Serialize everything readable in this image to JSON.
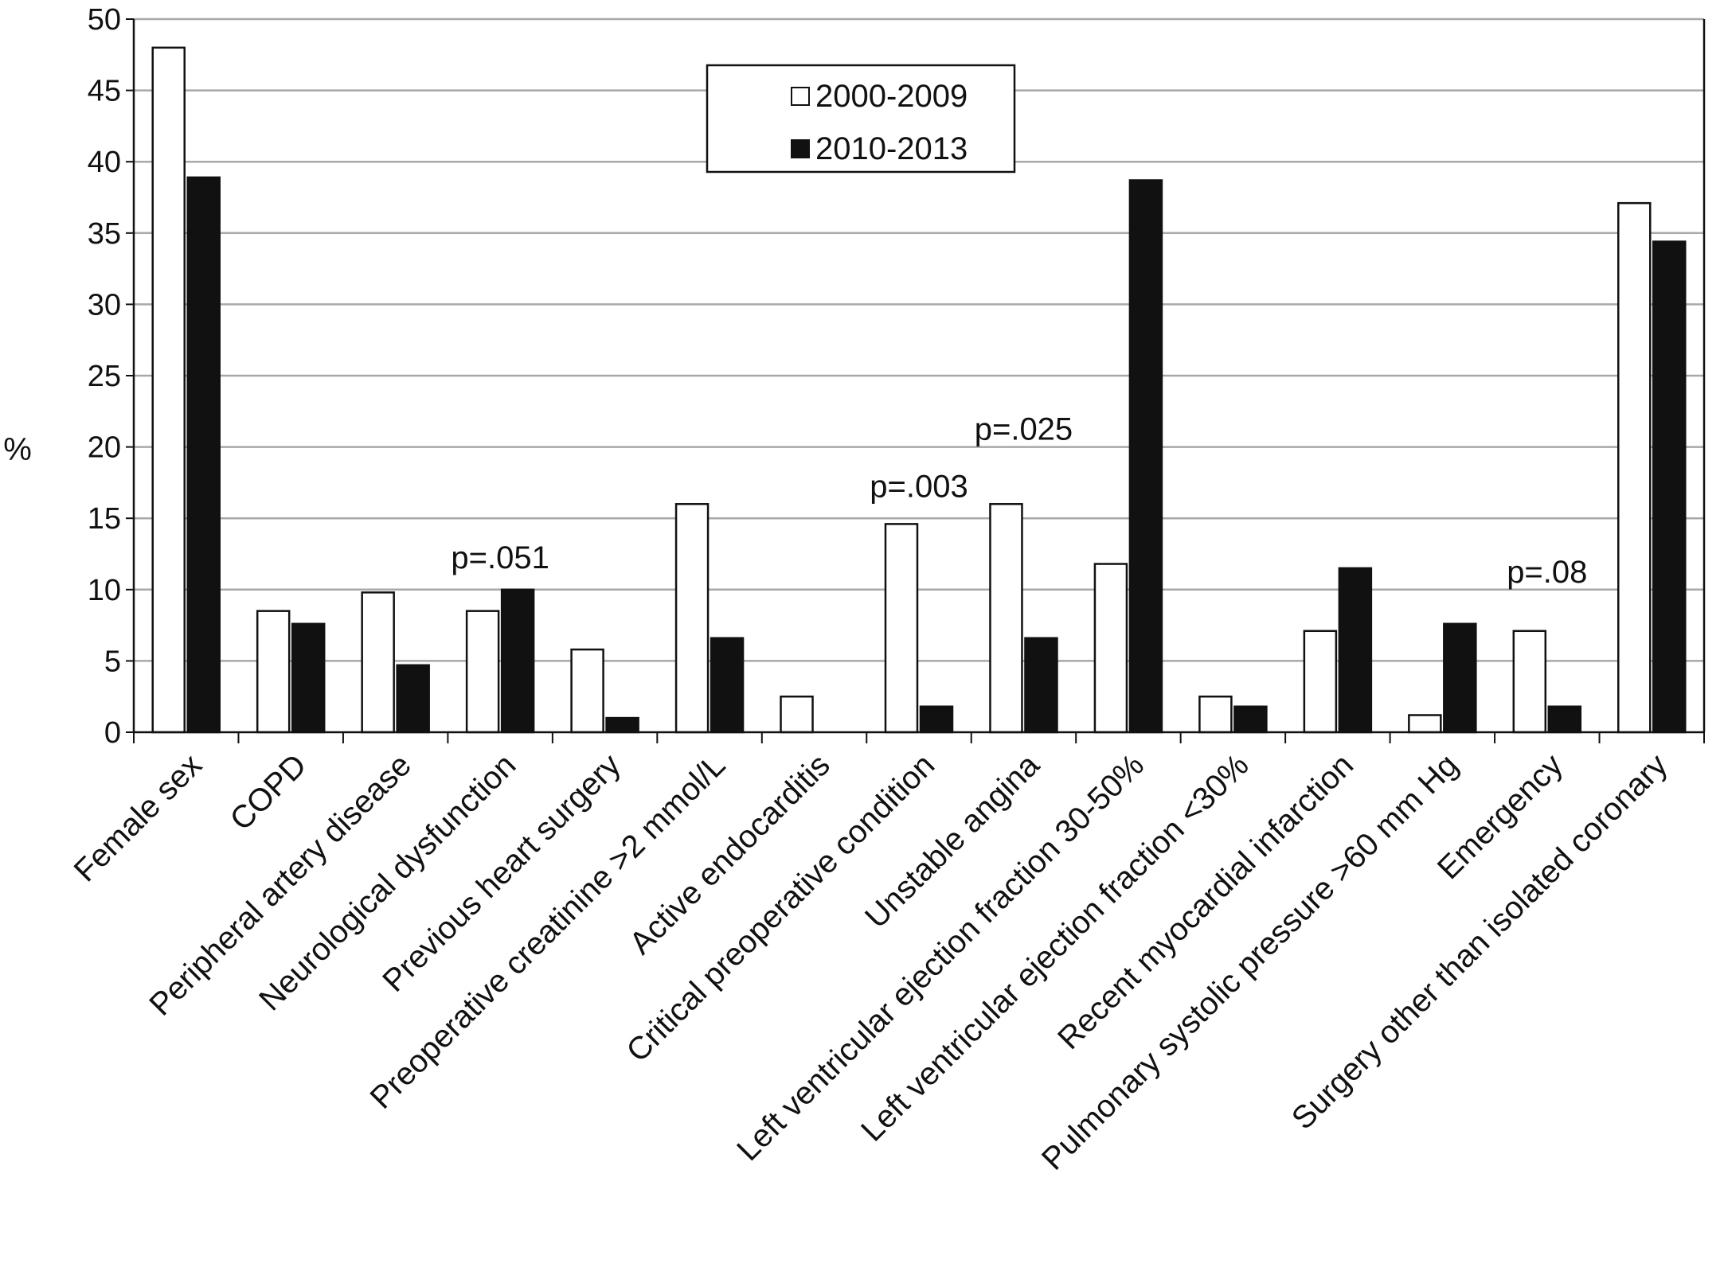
{
  "chart_data": {
    "type": "bar",
    "ylabel": "%",
    "ylim": [
      0,
      50
    ],
    "yticks": [
      0,
      5,
      10,
      15,
      20,
      25,
      30,
      35,
      40,
      45,
      50
    ],
    "grid": true,
    "legend_position": "top-center",
    "categories": [
      "Female sex",
      "COPD",
      "Peripheral artery disease",
      "Neurological dysfunction",
      "Previous heart surgery",
      "Preoperative creatinine >2 mmol/L",
      "Active endocarditis",
      "Critical preoperative condition",
      "Unstable angina",
      "Left ventricular ejection fraction 30-50%",
      "Left ventricular ejection fraction <30%",
      "Recent myocardial infarction",
      "Pulmonary systolic pressure >60 mm Hg",
      "Emergency",
      "Surgery other than isolated coronary"
    ],
    "series": [
      {
        "name": "2000-2009",
        "color": "#ffffff",
        "values": [
          48,
          8.5,
          9.8,
          8.5,
          5.8,
          16,
          2.5,
          14.6,
          16,
          11.8,
          2.5,
          7.1,
          1.2,
          7.1,
          37.1
        ]
      },
      {
        "name": "2010-2013",
        "color": "#111111",
        "values": [
          38.9,
          7.6,
          4.7,
          10,
          1,
          6.6,
          0,
          1.8,
          6.6,
          38.7,
          1.8,
          11.5,
          7.6,
          1.8,
          34.4
        ]
      }
    ],
    "annotations": [
      {
        "text": "p=.051",
        "category_index": 3,
        "y": 11.5
      },
      {
        "text": "p=.003",
        "category_index": 7,
        "y": 16.5
      },
      {
        "text": "p=.025",
        "category_index": 8,
        "y": 20.5
      },
      {
        "text": "p=.08",
        "category_index": 13,
        "y": 10.5
      }
    ]
  }
}
